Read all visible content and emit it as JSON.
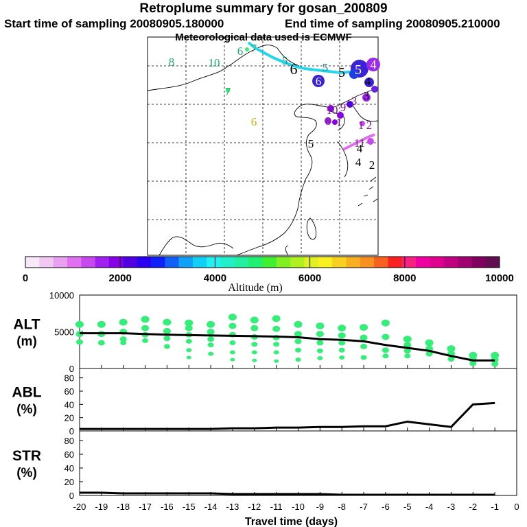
{
  "header": {
    "title": "Retroplume summary for gosan_200809",
    "start_label": "Start time of sampling 20080905.180000",
    "end_label": "End time of sampling 20080905.210000",
    "met_label": "Meteorological data used is ECMWF"
  },
  "colors": {
    "trajectory_cyan": "#22d7ea",
    "plume_blue": "#3a23d6",
    "plume_purple": "#9b2bea",
    "cluster_green": "#33ee77",
    "path_line": "#000000"
  },
  "map": {
    "labels": [
      {
        "text": "8",
        "color": "#18b070"
      },
      {
        "text": "10",
        "color": "#18b070"
      },
      {
        "text": "6",
        "color": "#18b070"
      },
      {
        "text": "7",
        "color": "#18b070"
      },
      {
        "text": "7",
        "color": "#18b070"
      },
      {
        "text": "6",
        "color": "#c8b000"
      },
      {
        "text": "5",
        "color": "#0c8a8a"
      },
      {
        "text": "6",
        "color": "#000000"
      },
      {
        "text": "5",
        "color": "#000000"
      },
      {
        "text": "5",
        "color": "#0c8a8a"
      },
      {
        "text": "5",
        "color": "#ffffff"
      },
      {
        "text": "4",
        "color": "#ffffff"
      },
      {
        "text": "4",
        "color": "#000000"
      },
      {
        "text": "3",
        "color": "#000000"
      },
      {
        "text": "6",
        "color": "#ffffff"
      },
      {
        "text": "3",
        "color": "#7a1a8a"
      },
      {
        "text": "10",
        "color": "#7a1a8a"
      },
      {
        "text": "8",
        "color": "#7a1a8a"
      },
      {
        "text": "9",
        "color": "#7a1a8a"
      },
      {
        "text": "1",
        "color": "#7a1a8a"
      },
      {
        "text": "1",
        "color": "#7a1a8a"
      },
      {
        "text": "2",
        "color": "#7a1a8a"
      },
      {
        "text": "5",
        "color": "#000000"
      },
      {
        "text": "11",
        "color": "#7a1a8a"
      },
      {
        "text": "4",
        "color": "#000000"
      },
      {
        "text": "4",
        "color": "#000000"
      },
      {
        "text": "2",
        "color": "#000000"
      }
    ]
  },
  "colorbar": {
    "xlabel": "Altitude (m)",
    "ticks": [
      "0",
      "2000",
      "4000",
      "6000",
      "8000",
      "10000"
    ],
    "range": [
      0,
      10000
    ],
    "colors": [
      "#f8e8f8",
      "#f0c8f0",
      "#e8a0f0",
      "#e070f0",
      "#c848f0",
      "#a020f0",
      "#8800e8",
      "#5000e0",
      "#2a00f0",
      "#1020f8",
      "#1060f8",
      "#10a0f8",
      "#10d0f8",
      "#20f0f0",
      "#20f0c8",
      "#20f0a0",
      "#20f070",
      "#40f030",
      "#80f020",
      "#b0f020",
      "#e0f020",
      "#f8f020",
      "#f8d020",
      "#f8b020",
      "#f89020",
      "#f86020",
      "#f82020",
      "#f82080",
      "#f000a0",
      "#e00090",
      "#c00080",
      "#a00070",
      "#800060",
      "#601050"
    ]
  },
  "chart_data": [
    {
      "type": "line",
      "name": "ALT",
      "ylabel": "ALT\n(m)",
      "ylabel_top": "ALT",
      "ylabel_unit": "(m)",
      "ylim": [
        0,
        10000
      ],
      "yticks": [
        "10000",
        "5000",
        "0"
      ],
      "x": [
        -20,
        -19,
        -18,
        -17,
        -16,
        -15,
        -14,
        -13,
        -12,
        -11,
        -10,
        -9,
        -8,
        -7,
        -6,
        -5,
        -4,
        -3,
        -2,
        -1
      ],
      "series": [
        {
          "name": "mean altitude",
          "values": [
            4800,
            4800,
            4800,
            4700,
            4600,
            4550,
            4500,
            4450,
            4400,
            4350,
            4250,
            4000,
            3900,
            3700,
            3200,
            2800,
            2400,
            1700,
            1100,
            1100
          ]
        }
      ],
      "scatter": [
        {
          "x": -20,
          "y": [
            6000,
            4700,
            3600
          ]
        },
        {
          "x": -19,
          "y": [
            6000,
            4700,
            3500
          ]
        },
        {
          "x": -18,
          "y": [
            6300,
            5000,
            4000,
            3500
          ]
        },
        {
          "x": -17,
          "y": [
            6700,
            5500,
            4600,
            3800
          ]
        },
        {
          "x": -16,
          "y": [
            6300,
            5100,
            4100,
            3000
          ]
        },
        {
          "x": -15,
          "y": [
            6200,
            5500,
            4600,
            3700,
            2500,
            1500
          ]
        },
        {
          "x": -14,
          "y": [
            6000,
            5000,
            4000,
            3200,
            2000
          ]
        },
        {
          "x": -13,
          "y": [
            7000,
            5800,
            4600,
            3500,
            2200,
            1200
          ]
        },
        {
          "x": -12,
          "y": [
            6600,
            5500,
            4300,
            3300,
            2200,
            1100
          ]
        },
        {
          "x": -11,
          "y": [
            6800,
            5400,
            4200,
            3300,
            2200,
            1000
          ]
        },
        {
          "x": -10,
          "y": [
            6000,
            4700,
            3700,
            2500,
            1200
          ]
        },
        {
          "x": -9,
          "y": [
            5800,
            4700,
            3500,
            2400,
            1400
          ]
        },
        {
          "x": -8,
          "y": [
            5500,
            4500,
            3500,
            2500,
            1500
          ]
        },
        {
          "x": -7,
          "y": [
            5600,
            4200,
            3000,
            1500
          ]
        },
        {
          "x": -6,
          "y": [
            6200,
            4300,
            2500,
            1700
          ]
        },
        {
          "x": -5,
          "y": [
            4000,
            3200,
            2400,
            1700
          ]
        },
        {
          "x": -4,
          "y": [
            3500,
            2700,
            2000
          ]
        },
        {
          "x": -3,
          "y": [
            2700,
            2000,
            1300
          ]
        },
        {
          "x": -2,
          "y": [
            1800,
            1200,
            700
          ]
        },
        {
          "x": -1,
          "y": [
            1800,
            1200,
            600
          ]
        }
      ]
    },
    {
      "type": "line",
      "name": "ABL",
      "ylabel_top": "ABL",
      "ylabel_unit": "(%)",
      "ylim": [
        0,
        90
      ],
      "yticks": [
        "80",
        "60",
        "40",
        "20",
        "0"
      ],
      "x": [
        -20,
        -19,
        -18,
        -17,
        -16,
        -15,
        -14,
        -13,
        -12,
        -11,
        -10,
        -9,
        -8,
        -7,
        -6,
        -5,
        -4,
        -3,
        -2,
        -1
      ],
      "series": [
        {
          "name": "ABL fraction",
          "values": [
            3,
            3,
            3,
            3,
            3,
            3,
            3,
            4,
            4,
            5,
            5,
            6,
            6,
            7,
            7,
            14,
            10,
            6,
            40,
            42
          ]
        }
      ]
    },
    {
      "type": "line",
      "name": "STR",
      "ylabel_top": "STR",
      "ylabel_unit": "(%)",
      "ylim": [
        0,
        90
      ],
      "yticks": [
        "80",
        "60",
        "40",
        "20",
        "0"
      ],
      "xlabel": "Travel time (days)",
      "xticks": [
        "-20",
        "-19",
        "-18",
        "-17",
        "-16",
        "-15",
        "-14",
        "-13",
        "-12",
        "-11",
        "-10",
        "-9",
        "-8",
        "-7",
        "-6",
        "-5",
        "-4",
        "-3",
        "-2",
        "-1",
        "0"
      ],
      "x": [
        -20,
        -19,
        -18,
        -17,
        -16,
        -15,
        -14,
        -13,
        -12,
        -11,
        -10,
        -9,
        -8,
        -7,
        -6,
        -5,
        -4,
        -3,
        -2,
        -1
      ],
      "series": [
        {
          "name": "stratospheric fraction",
          "values": [
            4,
            4,
            3,
            3,
            3,
            3,
            3,
            2,
            2,
            2,
            2,
            2,
            1,
            1,
            1,
            1,
            1,
            1,
            1,
            1
          ]
        }
      ]
    }
  ]
}
